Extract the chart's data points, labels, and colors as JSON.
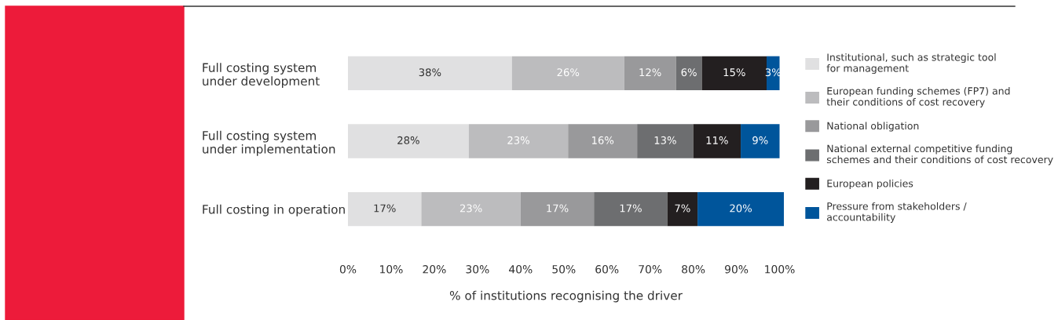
{
  "chart_data": {
    "type": "bar",
    "orientation": "horizontal",
    "stacked": true,
    "xlabel": "% of institutions recognising the driver",
    "categories": [
      "Full costing system\nunder development",
      "Full costing system\nunder implementation",
      "Full costing in operation"
    ],
    "series": [
      {
        "name": "Institutional, such as strategic tool\nfor management",
        "color": "#e0e0e1",
        "values": [
          38,
          28,
          17
        ],
        "value_labels": [
          "38%",
          "28%",
          "17%"
        ]
      },
      {
        "name": "European funding schemes (FP7) and\ntheir conditions of cost recovery",
        "color": "#bcbcbe",
        "values": [
          26,
          23,
          23
        ],
        "value_labels": [
          "26%",
          "23%",
          "23%"
        ]
      },
      {
        "name": "National obligation",
        "color": "#99999b",
        "values": [
          12,
          16,
          17
        ],
        "value_labels": [
          "12%",
          "16%",
          "17%"
        ]
      },
      {
        "name": "National external competitive funding\nschemes and their conditions of cost recovery",
        "color": "#6d6e70",
        "values": [
          6,
          13,
          17
        ],
        "value_labels": [
          "6%",
          "13%",
          "17%"
        ]
      },
      {
        "name": "European policies",
        "color": "#231f20",
        "values": [
          15,
          11,
          7
        ],
        "value_labels": [
          "15%",
          "11%",
          "7%"
        ]
      },
      {
        "name": "Pressure from stakeholders /\naccountability",
        "color": "#00559b",
        "values": [
          3,
          9,
          20
        ],
        "value_labels": [
          "3%",
          "9%",
          "20%"
        ]
      }
    ],
    "xlim": [
      0,
      101
    ],
    "xticks": [
      {
        "value": 0,
        "label": "0%"
      },
      {
        "value": 10,
        "label": "10%"
      },
      {
        "value": 20,
        "label": "20%"
      },
      {
        "value": 30,
        "label": "30%"
      },
      {
        "value": 40,
        "label": "40%"
      },
      {
        "value": 50,
        "label": "50%"
      },
      {
        "value": 60,
        "label": "60%"
      },
      {
        "value": 70,
        "label": "70%"
      },
      {
        "value": 80,
        "label": "80%"
      },
      {
        "value": 90,
        "label": "90%"
      },
      {
        "value": 100,
        "label": "100%"
      }
    ],
    "grid": false,
    "legend": "right"
  }
}
